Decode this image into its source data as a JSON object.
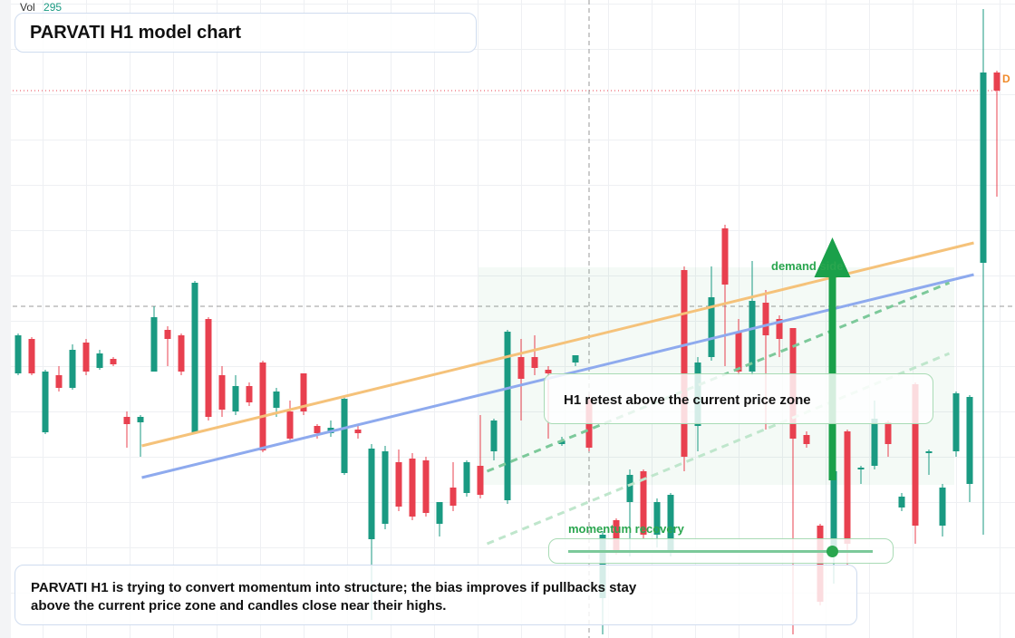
{
  "chart_data": {
    "type": "candlestick",
    "title": "PARVATI H1 model chart",
    "volume_label": "Vol",
    "volume_value": 295,
    "ylim": [
      0,
      704
    ],
    "up_color": "#1a9a82",
    "down_color": "#e8404f",
    "open": [
      292,
      330,
      227,
      290,
      276,
      326,
      298,
      308,
      244,
      238,
      294,
      340,
      334,
      227,
      352,
      290,
      250,
      278,
      304,
      254,
      250,
      292,
      234,
      226,
      182,
      230,
      109,
      126,
      194,
      198,
      196,
      126,
      166,
      160,
      190,
      206,
      152,
      310,
      310,
      296,
      214,
      304,
      264,
      44,
      130,
      150,
      184,
      114,
      94,
      406,
      234,
      310,
      452,
      338,
      294,
      370,
      352,
      342,
      224,
      124,
      94,
      228,
      186,
      190,
      238,
      144,
      280,
      204,
      124,
      206,
      170,
      414,
      624
    ],
    "high": [
      336,
      332,
      296,
      300,
      324,
      330,
      318,
      310,
      250,
      246,
      366,
      344,
      336,
      394,
      354,
      300,
      290,
      282,
      306,
      276,
      262,
      292,
      236,
      240,
      268,
      234,
      214,
      212,
      208,
      204,
      200,
      150,
      194,
      196,
      246,
      242,
      340,
      330,
      334,
      300,
      222,
      312,
      268,
      118,
      132,
      186,
      186,
      154,
      160,
      410,
      310,
      410,
      456,
      352,
      416,
      384,
      356,
      342,
      228,
      126,
      190,
      230,
      190,
      262,
      240,
      160,
      282,
      208,
      170,
      272,
      268,
      694,
      626
    ],
    "low": [
      290,
      290,
      225,
      272,
      274,
      290,
      296,
      300,
      210,
      200,
      294,
      300,
      290,
      225,
      240,
      244,
      246,
      256,
      205,
      244,
      216,
      246,
      220,
      222,
      180,
      220,
      20,
      120,
      140,
      130,
      134,
      112,
      140,
      156,
      154,
      196,
      148,
      240,
      290,
      220,
      212,
      300,
      206,
      4,
      92,
      90,
      110,
      100,
      90,
      184,
      206,
      306,
      300,
      290,
      290,
      230,
      310,
      4,
      210,
      36,
      60,
      80,
      170,
      186,
      200,
      140,
      104,
      180,
      112,
      200,
      150,
      114,
      487
    ],
    "close": [
      334,
      292,
      294,
      276,
      318,
      294,
      314,
      302,
      236,
      244,
      354,
      330,
      294,
      392,
      244,
      252,
      278,
      260,
      207,
      272,
      220,
      250,
      226,
      232,
      264,
      226,
      209,
      206,
      145,
      134,
      138,
      150,
      146,
      194,
      158,
      240,
      338,
      286,
      298,
      292,
      218,
      312,
      210,
      114,
      96,
      180,
      114,
      150,
      158,
      200,
      304,
      376,
      390,
      294,
      372,
      334,
      330,
      220,
      214,
      40,
      184,
      104,
      188,
      242,
      214,
      156,
      124,
      206,
      166,
      270,
      266,
      624,
      604
    ],
    "lines": [
      {
        "color": "#f5c27a",
        "dash": "solid",
        "from": [
          9.1,
          212
        ],
        "to": [
          70.3,
          436
        ]
      },
      {
        "color": "#8eaaee",
        "dash": "solid",
        "from": [
          9.1,
          177
        ],
        "to": [
          70.3,
          401
        ]
      },
      {
        "color": "#7cc99a",
        "dash": "dashed",
        "from": [
          34.5,
          184
        ],
        "to": [
          68.5,
          392
        ]
      },
      {
        "color": "#bfe6cc",
        "dash": "dashed",
        "from": [
          34.5,
          104
        ],
        "to": [
          68.5,
          314
        ]
      }
    ],
    "level": {
      "value": 604,
      "label": "D",
      "color": "#f08a2a"
    },
    "crosshair": {
      "index": 42,
      "value": 366
    },
    "arrow": {
      "index": 59.9,
      "from": 174,
      "to": 442,
      "color": "#1aa04a"
    },
    "annotations": {
      "zone": "demand side",
      "momentum": "momentum recovery",
      "retest": "H1 retest above the current price zone"
    },
    "summary": [
      "PARVATI H1 is trying to convert momentum into structure; the bias improves if pullbacks stay",
      "above the current price zone and candles close near their highs."
    ]
  }
}
